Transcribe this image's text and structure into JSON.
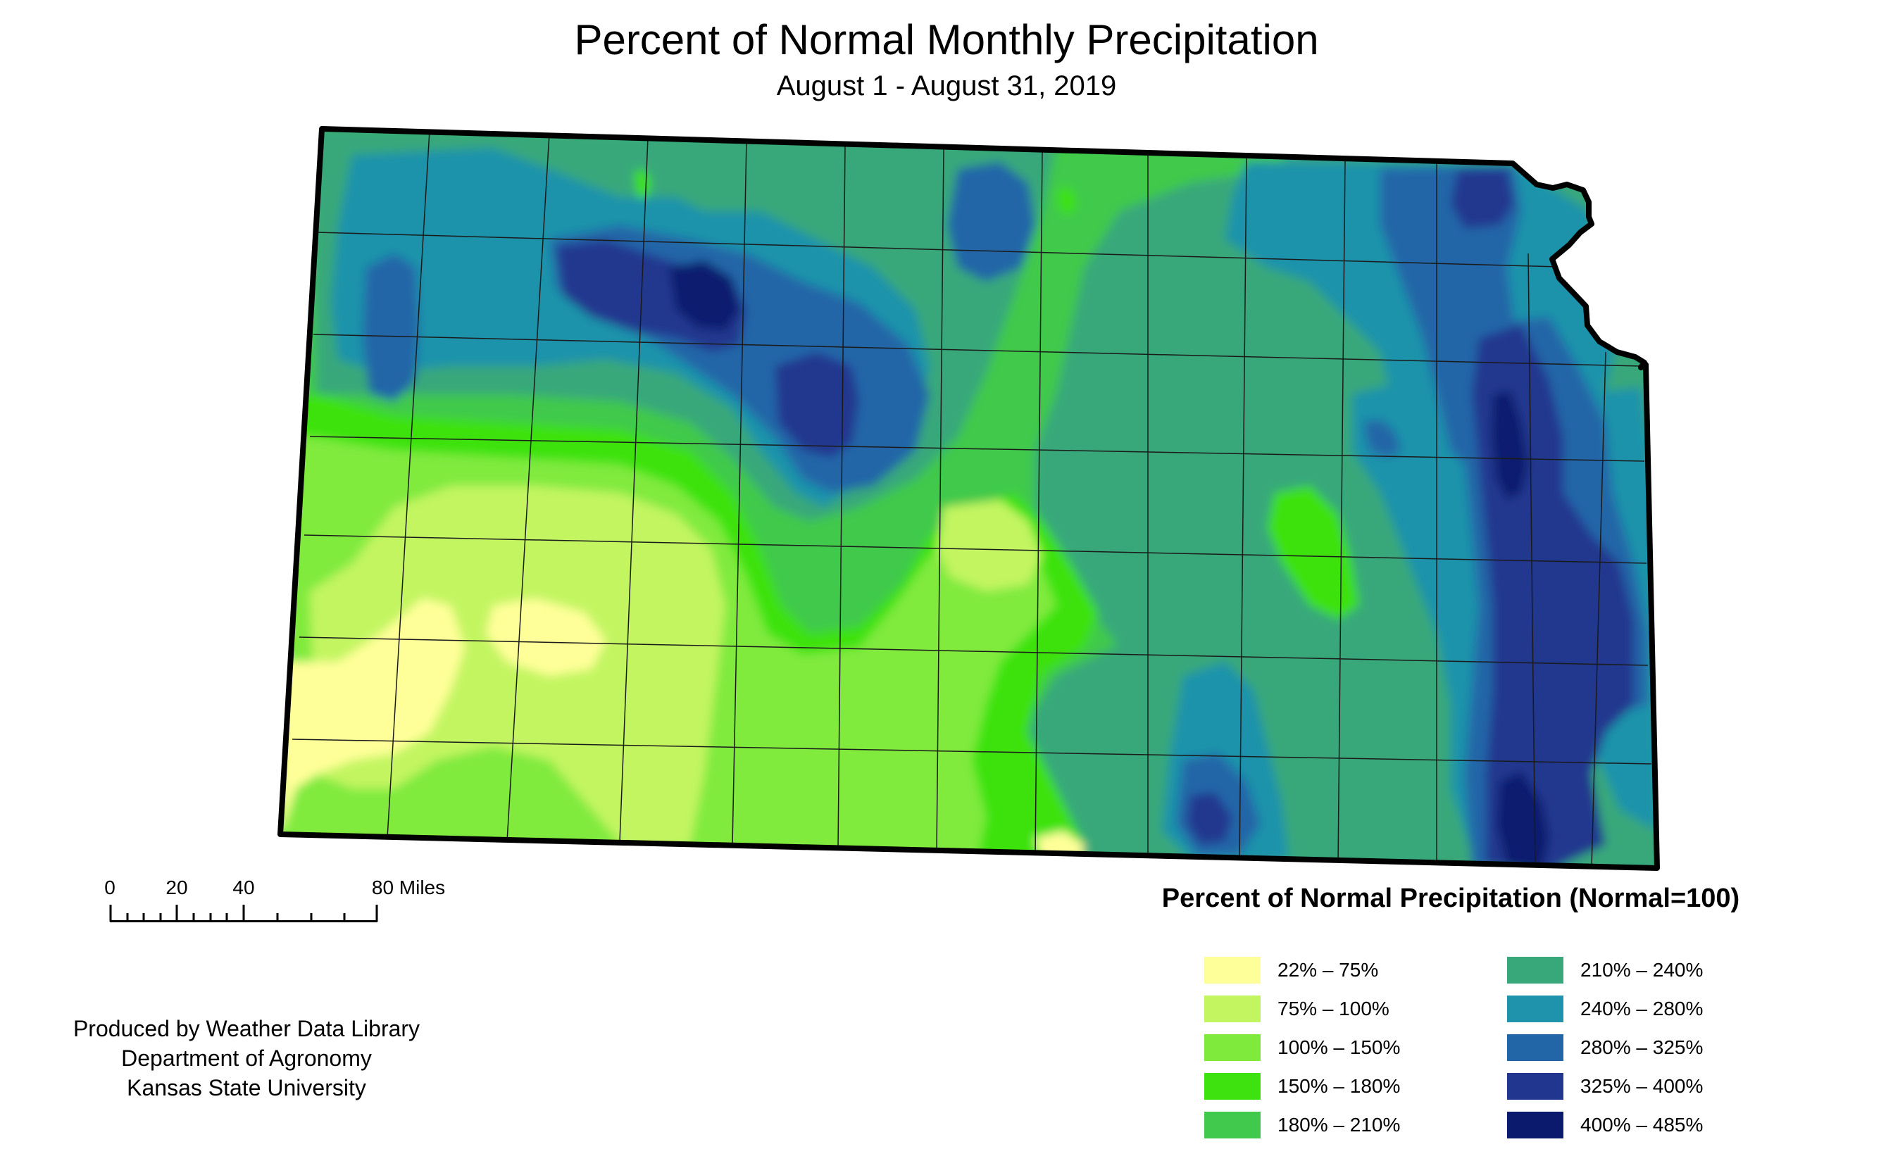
{
  "header": {
    "title": "Percent of Normal Monthly Precipitation",
    "subtitle": "August 1 - August 31, 2019"
  },
  "map": {
    "region": "Kansas",
    "border_color": "#000000",
    "county_line_color": "#1a1a1a"
  },
  "scale": {
    "ticks": [
      "0",
      "20",
      "40",
      "80 Miles"
    ]
  },
  "credits": {
    "line1": "Produced by Weather Data Library",
    "line2": "Department of Agronomy",
    "line3": "Kansas State University"
  },
  "legend": {
    "title": "Percent of Normal Precipitation (Normal=100)",
    "items": [
      {
        "label": "22% – 75%",
        "color": "#ffff99"
      },
      {
        "label": "75% – 100%",
        "color": "#c2f560"
      },
      {
        "label": "100% – 150%",
        "color": "#80ea3c"
      },
      {
        "label": "150% – 180%",
        "color": "#3ee20e"
      },
      {
        "label": "180% – 210%",
        "color": "#40c94c"
      },
      {
        "label": "210% – 240%",
        "color": "#38a87a"
      },
      {
        "label": "240% – 280%",
        "color": "#1e93ab"
      },
      {
        "label": "280% – 325%",
        "color": "#2366a8"
      },
      {
        "label": "325% – 400%",
        "color": "#21378f"
      },
      {
        "label": "400% – 485%",
        "color": "#0c1a6e"
      }
    ]
  }
}
